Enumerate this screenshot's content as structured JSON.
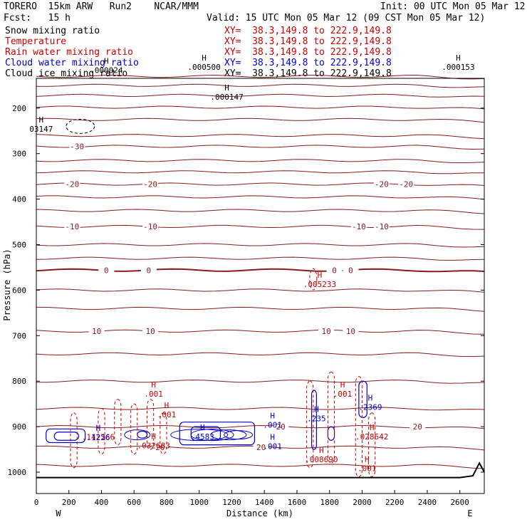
{
  "header": {
    "model": "TORERO  15km ARW   Run2    NCAR/MMM",
    "init": "Init: 00 UTC Mon 05 Mar 12",
    "fcst": "Fcst:   15 h",
    "valid": "Valid: 15 UTC Mon 05 Mar 12 (09 CST Mon 05 Mar 12)"
  },
  "legend": [
    {
      "name": "Snow mixing ratio",
      "xy": "XY=  38.3,149.8 to 222.9,149.8",
      "color": "#000000"
    },
    {
      "name": "Temperature",
      "xy": "XY=  38.3,149.8 to 222.9,149.8",
      "color": "#cc0000"
    },
    {
      "name": "Rain water mixing ratio",
      "xy": "XY=  38.3,149.8 to 222.9,149.8",
      "color": "#cc0000"
    },
    {
      "name": "Cloud water mixing ratio",
      "xy": "XY=  38.3,149.8 to 222.9,149.8",
      "color": "#0000cc"
    },
    {
      "name": "Cloud ice mixing ratio",
      "xy": "XY=  38.3,149.8 to 222.9,149.8",
      "color": "#000000"
    }
  ],
  "chart_data": {
    "type": "line",
    "title": "Cross section",
    "xlabel": "Distance (km)",
    "ylabel": "Pressure (hPa)",
    "xlim": [
      0,
      2750
    ],
    "ylim": [
      1050,
      100
    ],
    "x_ticks": [
      0,
      200,
      400,
      600,
      800,
      1000,
      1200,
      1400,
      1600,
      1800,
      2000,
      2200,
      2400,
      2600
    ],
    "y_ticks": [
      200,
      300,
      400,
      500,
      600,
      700,
      800,
      900,
      1000
    ],
    "x_end_labels": {
      "left": "W",
      "right": "E"
    },
    "colors": {
      "temperature": "#8b1a1a",
      "rain": "#cc0000",
      "cloud_water": "#0000cc",
      "terrain": "#000000"
    },
    "isotherms": [
      {
        "p": 130
      },
      {
        "p": 150
      },
      {
        "p": 172
      },
      {
        "p": 198
      },
      {
        "p": 225
      },
      {
        "p": 260
      },
      {
        "p": 284,
        "label": "-30",
        "label_x": [
          250
        ]
      },
      {
        "p": 315
      },
      {
        "p": 340
      },
      {
        "p": 367,
        "label": "-20",
        "label_x": [
          220,
          700,
          2120,
          2270
        ]
      },
      {
        "p": 395
      },
      {
        "p": 425
      },
      {
        "p": 460,
        "label": "-10",
        "label_x": [
          220,
          700,
          1980,
          2120
        ]
      },
      {
        "p": 500
      },
      {
        "p": 530
      },
      {
        "p": 556,
        "label": "0",
        "label_x": [
          430,
          690,
          1830,
          1930
        ],
        "bold": true
      },
      {
        "p": 600
      },
      {
        "p": 640
      },
      {
        "p": 690,
        "label": "10",
        "label_x": [
          370,
          700,
          1780,
          1930
        ]
      },
      {
        "p": 740
      },
      {
        "p": 800
      },
      {
        "p": 860
      },
      {
        "p": 900,
        "label": "20",
        "label_x": [
          1500,
          2340
        ]
      },
      {
        "p": 945,
        "label": "20",
        "label_x": [
          760,
          1380
        ]
      },
      {
        "p": 985
      }
    ],
    "high_markers": [
      {
        "x": 430,
        "p": 115,
        "value": ".000024",
        "color": "#000000"
      },
      {
        "x": 1030,
        "p": 108,
        "value": ".000500",
        "color": "#000000"
      },
      {
        "x": 1170,
        "p": 174,
        "value": ".000147",
        "color": "#000000"
      },
      {
        "x": 2590,
        "p": 108,
        "value": ".000153",
        "color": "#000000"
      },
      {
        "x": 30,
        "p": 244,
        "value": "03147",
        "color": "#000000"
      },
      {
        "x": 1740,
        "p": 585,
        "value": ".005233",
        "color": "#cc0000"
      },
      {
        "x": 380,
        "p": 921,
        "value": ".142566",
        "color": "#cc0000"
      },
      {
        "x": 720,
        "p": 940,
        "value": ".032683",
        "color": "#cc0000"
      },
      {
        "x": 1750,
        "p": 970,
        "value": ".008690",
        "color": "#cc0000"
      },
      {
        "x": 2060,
        "p": 920,
        "value": ".028642",
        "color": "#cc0000"
      },
      {
        "x": 2030,
        "p": 990,
        "value": ".001",
        "color": "#cc0000"
      },
      {
        "x": 720,
        "p": 826,
        "value": ".001",
        "color": "#cc0000"
      },
      {
        "x": 800,
        "p": 872,
        "value": ".001",
        "color": "#cc0000"
      },
      {
        "x": 1880,
        "p": 826,
        "value": ".001",
        "color": "#cc0000"
      },
      {
        "x": 1720,
        "p": 880,
        "value": ".235",
        "color": "#0000cc"
      },
      {
        "x": 2050,
        "p": 855,
        "value": ".2369",
        "color": "#0000cc"
      },
      {
        "x": 1020,
        "p": 920,
        "value": ".4583",
        "color": "#0000cc"
      },
      {
        "x": 380,
        "p": 922,
        "value": ".1226",
        "color": "#0000cc"
      },
      {
        "x": 1450,
        "p": 894,
        "value": ".001",
        "color": "#0000cc"
      },
      {
        "x": 1450,
        "p": 941,
        "value": ".001",
        "color": "#0000cc"
      }
    ]
  }
}
